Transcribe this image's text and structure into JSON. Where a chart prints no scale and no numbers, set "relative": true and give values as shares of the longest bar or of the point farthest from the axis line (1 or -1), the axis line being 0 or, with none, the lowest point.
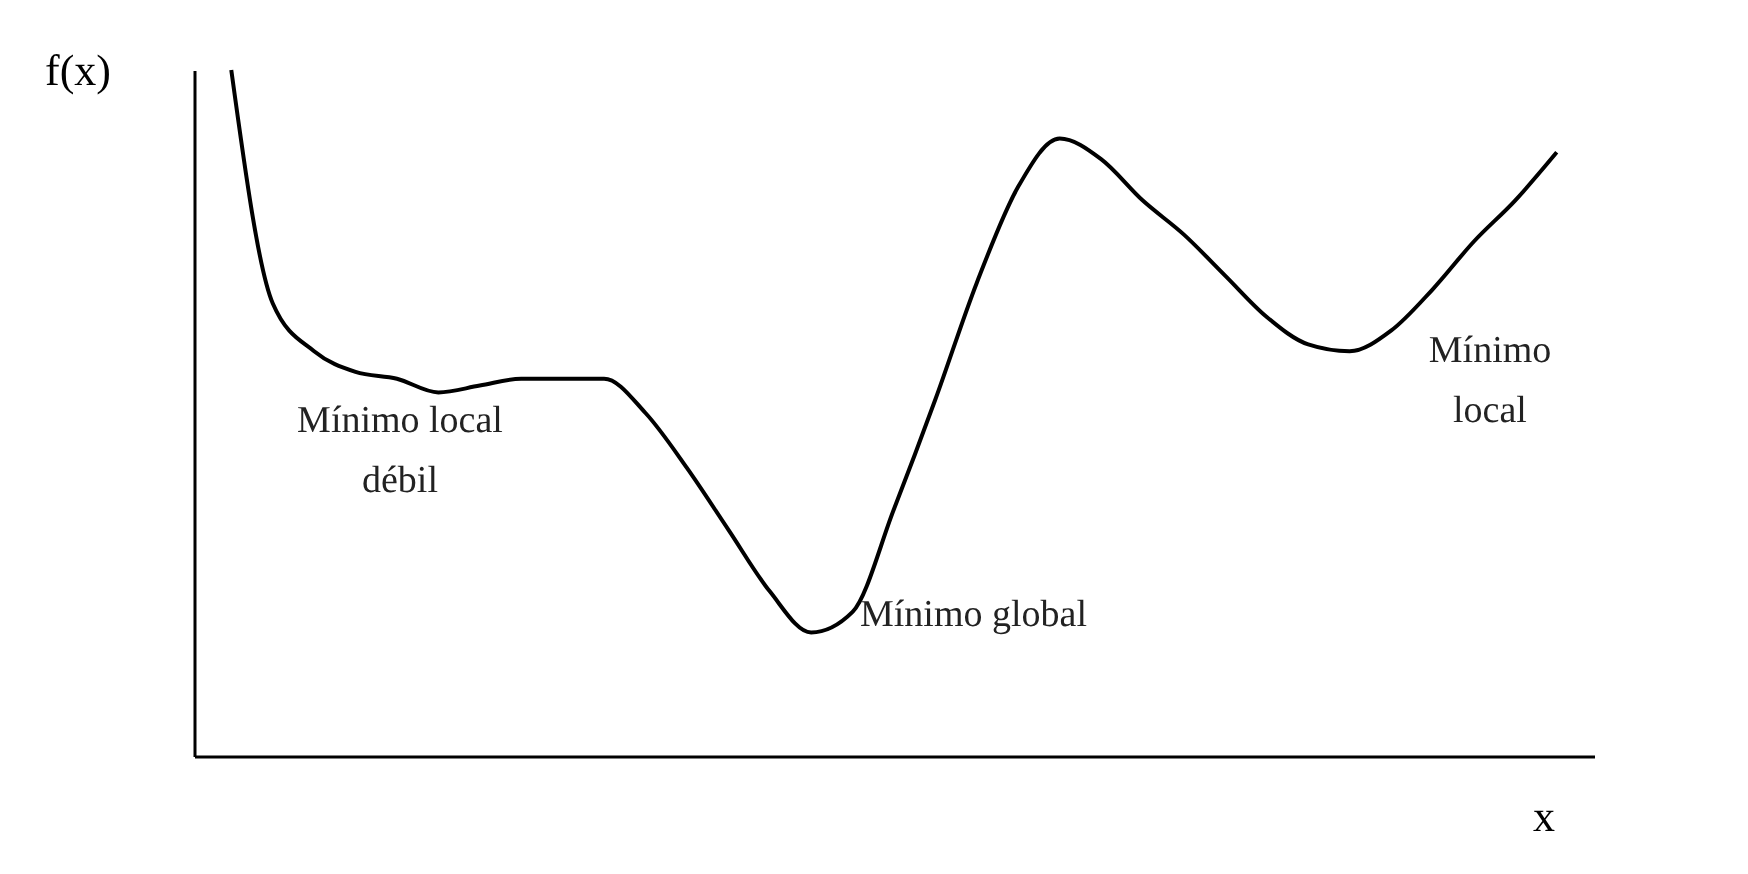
{
  "chart_data": {
    "type": "line",
    "relative": true,
    "xlabel": "x",
    "ylabel": "f(x)",
    "marker": "none",
    "grid": false,
    "tick_labels": false,
    "categories": [
      null,
      null,
      null,
      null,
      null,
      null,
      null,
      null,
      null,
      null,
      null,
      null,
      null,
      null,
      null,
      null,
      null,
      null,
      null,
      null,
      null,
      null,
      null,
      null,
      null,
      null,
      null,
      null,
      null,
      null,
      null,
      null,
      null
    ],
    "series": [
      {
        "color": "#000000",
        "values": [
          1.0,
          0.66,
          0.59,
          0.56,
          0.55,
          0.53,
          0.54,
          0.55,
          0.55,
          0.55,
          0.5,
          0.42,
          0.33,
          0.24,
          0.18,
          0.21,
          0.36,
          0.52,
          0.69,
          0.83,
          0.9,
          0.87,
          0.81,
          0.76,
          0.7,
          0.64,
          0.6,
          0.59,
          0.62,
          0.68,
          0.75,
          0.81,
          0.88
        ]
      }
    ],
    "annotations": [
      "Mínimo local\ndébil",
      "Mínimo global",
      "Mínimo\nlocal"
    ]
  }
}
